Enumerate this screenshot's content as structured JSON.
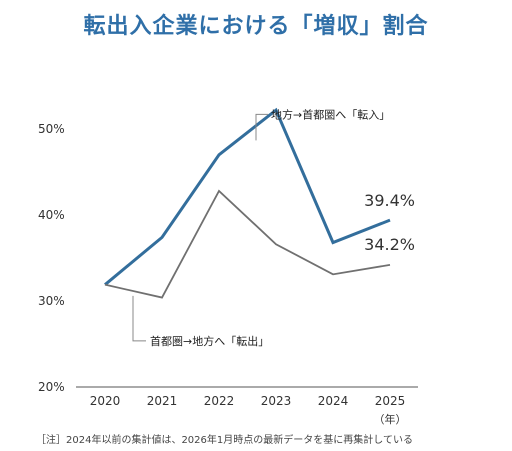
{
  "chart_data": {
    "type": "line",
    "title": "転出入企業における「増収」割合",
    "x": [
      "2020",
      "2021",
      "2022",
      "2023",
      "2024",
      "2025"
    ],
    "x_unit": "（年）",
    "ylim": [
      20,
      55
    ],
    "yticks": [
      "20%",
      "30%",
      "40%",
      "50%"
    ],
    "ytick_values": [
      20,
      30,
      40,
      50
    ],
    "grid": false,
    "series": [
      {
        "name": "地方→首都圏へ「転入」",
        "values": [
          31.9,
          37.4,
          47.0,
          52.2,
          36.8,
          39.4
        ],
        "color": "#336e9c",
        "end_label": "39.4%"
      },
      {
        "name": "首都圏→地方へ「転出」",
        "values": [
          31.9,
          30.4,
          42.8,
          36.6,
          33.1,
          34.2
        ],
        "color": "#707070",
        "end_label": "34.2%"
      }
    ],
    "note": "［注］2024年以前の集計値は、2026年1月時点の最新データを基に再集計している"
  }
}
